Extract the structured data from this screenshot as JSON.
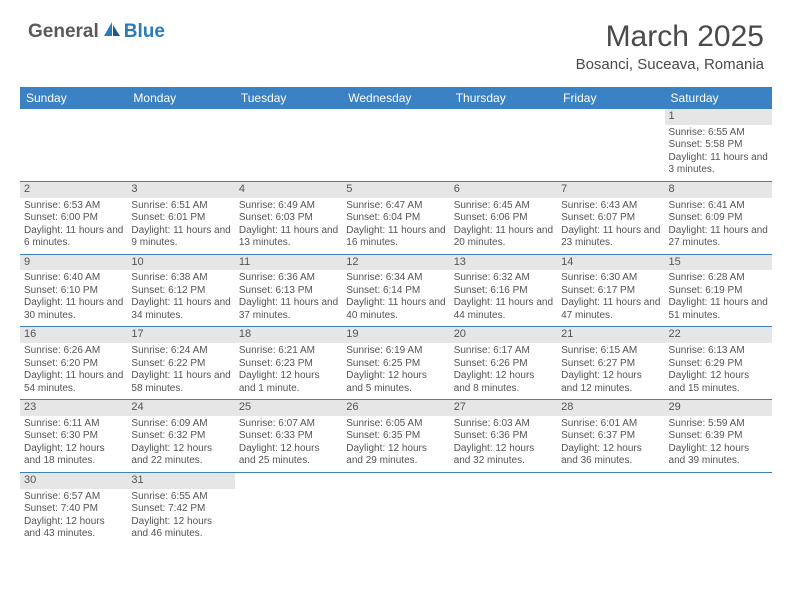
{
  "logo": {
    "general": "General",
    "blue": "Blue"
  },
  "title": "March 2025",
  "location": "Bosanci, Suceava, Romania",
  "weekdays": [
    "Sunday",
    "Monday",
    "Tuesday",
    "Wednesday",
    "Thursday",
    "Friday",
    "Saturday"
  ],
  "colors": {
    "header_bg": "#3b82c4",
    "header_text": "#ffffff",
    "day_num_bg": "#e6e6e6",
    "border": "#3b82c4",
    "logo_gray": "#5a5a5a",
    "logo_blue": "#2b7bb9"
  },
  "weeks": [
    [
      null,
      null,
      null,
      null,
      null,
      null,
      {
        "n": "1",
        "sunrise": "Sunrise: 6:55 AM",
        "sunset": "Sunset: 5:58 PM",
        "daylight": "Daylight: 11 hours and 3 minutes."
      }
    ],
    [
      {
        "n": "2",
        "sunrise": "Sunrise: 6:53 AM",
        "sunset": "Sunset: 6:00 PM",
        "daylight": "Daylight: 11 hours and 6 minutes."
      },
      {
        "n": "3",
        "sunrise": "Sunrise: 6:51 AM",
        "sunset": "Sunset: 6:01 PM",
        "daylight": "Daylight: 11 hours and 9 minutes."
      },
      {
        "n": "4",
        "sunrise": "Sunrise: 6:49 AM",
        "sunset": "Sunset: 6:03 PM",
        "daylight": "Daylight: 11 hours and 13 minutes."
      },
      {
        "n": "5",
        "sunrise": "Sunrise: 6:47 AM",
        "sunset": "Sunset: 6:04 PM",
        "daylight": "Daylight: 11 hours and 16 minutes."
      },
      {
        "n": "6",
        "sunrise": "Sunrise: 6:45 AM",
        "sunset": "Sunset: 6:06 PM",
        "daylight": "Daylight: 11 hours and 20 minutes."
      },
      {
        "n": "7",
        "sunrise": "Sunrise: 6:43 AM",
        "sunset": "Sunset: 6:07 PM",
        "daylight": "Daylight: 11 hours and 23 minutes."
      },
      {
        "n": "8",
        "sunrise": "Sunrise: 6:41 AM",
        "sunset": "Sunset: 6:09 PM",
        "daylight": "Daylight: 11 hours and 27 minutes."
      }
    ],
    [
      {
        "n": "9",
        "sunrise": "Sunrise: 6:40 AM",
        "sunset": "Sunset: 6:10 PM",
        "daylight": "Daylight: 11 hours and 30 minutes."
      },
      {
        "n": "10",
        "sunrise": "Sunrise: 6:38 AM",
        "sunset": "Sunset: 6:12 PM",
        "daylight": "Daylight: 11 hours and 34 minutes."
      },
      {
        "n": "11",
        "sunrise": "Sunrise: 6:36 AM",
        "sunset": "Sunset: 6:13 PM",
        "daylight": "Daylight: 11 hours and 37 minutes."
      },
      {
        "n": "12",
        "sunrise": "Sunrise: 6:34 AM",
        "sunset": "Sunset: 6:14 PM",
        "daylight": "Daylight: 11 hours and 40 minutes."
      },
      {
        "n": "13",
        "sunrise": "Sunrise: 6:32 AM",
        "sunset": "Sunset: 6:16 PM",
        "daylight": "Daylight: 11 hours and 44 minutes."
      },
      {
        "n": "14",
        "sunrise": "Sunrise: 6:30 AM",
        "sunset": "Sunset: 6:17 PM",
        "daylight": "Daylight: 11 hours and 47 minutes."
      },
      {
        "n": "15",
        "sunrise": "Sunrise: 6:28 AM",
        "sunset": "Sunset: 6:19 PM",
        "daylight": "Daylight: 11 hours and 51 minutes."
      }
    ],
    [
      {
        "n": "16",
        "sunrise": "Sunrise: 6:26 AM",
        "sunset": "Sunset: 6:20 PM",
        "daylight": "Daylight: 11 hours and 54 minutes."
      },
      {
        "n": "17",
        "sunrise": "Sunrise: 6:24 AM",
        "sunset": "Sunset: 6:22 PM",
        "daylight": "Daylight: 11 hours and 58 minutes."
      },
      {
        "n": "18",
        "sunrise": "Sunrise: 6:21 AM",
        "sunset": "Sunset: 6:23 PM",
        "daylight": "Daylight: 12 hours and 1 minute."
      },
      {
        "n": "19",
        "sunrise": "Sunrise: 6:19 AM",
        "sunset": "Sunset: 6:25 PM",
        "daylight": "Daylight: 12 hours and 5 minutes."
      },
      {
        "n": "20",
        "sunrise": "Sunrise: 6:17 AM",
        "sunset": "Sunset: 6:26 PM",
        "daylight": "Daylight: 12 hours and 8 minutes."
      },
      {
        "n": "21",
        "sunrise": "Sunrise: 6:15 AM",
        "sunset": "Sunset: 6:27 PM",
        "daylight": "Daylight: 12 hours and 12 minutes."
      },
      {
        "n": "22",
        "sunrise": "Sunrise: 6:13 AM",
        "sunset": "Sunset: 6:29 PM",
        "daylight": "Daylight: 12 hours and 15 minutes."
      }
    ],
    [
      {
        "n": "23",
        "sunrise": "Sunrise: 6:11 AM",
        "sunset": "Sunset: 6:30 PM",
        "daylight": "Daylight: 12 hours and 18 minutes."
      },
      {
        "n": "24",
        "sunrise": "Sunrise: 6:09 AM",
        "sunset": "Sunset: 6:32 PM",
        "daylight": "Daylight: 12 hours and 22 minutes."
      },
      {
        "n": "25",
        "sunrise": "Sunrise: 6:07 AM",
        "sunset": "Sunset: 6:33 PM",
        "daylight": "Daylight: 12 hours and 25 minutes."
      },
      {
        "n": "26",
        "sunrise": "Sunrise: 6:05 AM",
        "sunset": "Sunset: 6:35 PM",
        "daylight": "Daylight: 12 hours and 29 minutes."
      },
      {
        "n": "27",
        "sunrise": "Sunrise: 6:03 AM",
        "sunset": "Sunset: 6:36 PM",
        "daylight": "Daylight: 12 hours and 32 minutes."
      },
      {
        "n": "28",
        "sunrise": "Sunrise: 6:01 AM",
        "sunset": "Sunset: 6:37 PM",
        "daylight": "Daylight: 12 hours and 36 minutes."
      },
      {
        "n": "29",
        "sunrise": "Sunrise: 5:59 AM",
        "sunset": "Sunset: 6:39 PM",
        "daylight": "Daylight: 12 hours and 39 minutes."
      }
    ],
    [
      {
        "n": "30",
        "sunrise": "Sunrise: 6:57 AM",
        "sunset": "Sunset: 7:40 PM",
        "daylight": "Daylight: 12 hours and 43 minutes."
      },
      {
        "n": "31",
        "sunrise": "Sunrise: 6:55 AM",
        "sunset": "Sunset: 7:42 PM",
        "daylight": "Daylight: 12 hours and 46 minutes."
      },
      null,
      null,
      null,
      null,
      null
    ]
  ]
}
